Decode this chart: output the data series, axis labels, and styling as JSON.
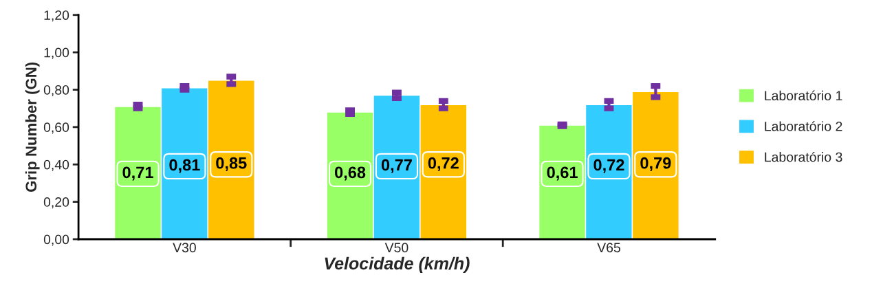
{
  "chart_data": {
    "type": "bar",
    "xlabel": "Velocidade (km/h)",
    "ylabel": "Grip Number (GN)",
    "categories": [
      "V30",
      "V50",
      "V65"
    ],
    "series": [
      {
        "name": "Laboratório 1",
        "color": "#99ff66",
        "values": [
          0.71,
          0.68,
          0.61
        ],
        "errors": [
          0.01,
          0.01,
          0.005
        ],
        "value_labels": [
          "0,71",
          "0,68",
          "0,61"
        ]
      },
      {
        "name": "Laboratório 2",
        "color": "#33ccff",
        "values": [
          0.81,
          0.77,
          0.72
        ],
        "errors": [
          0.01,
          0.015,
          0.02
        ],
        "value_labels": [
          "0,81",
          "0,77",
          "0,72"
        ]
      },
      {
        "name": "Laboratório 3",
        "color": "#ffc000",
        "values": [
          0.85,
          0.72,
          0.79
        ],
        "errors": [
          0.02,
          0.02,
          0.03
        ],
        "value_labels": [
          "0,85",
          "0,72",
          "0,79"
        ]
      }
    ],
    "ylim": [
      0,
      1.2
    ],
    "yticks": [
      {
        "value": 0,
        "label": "0,00"
      },
      {
        "value": 0.2,
        "label": "0,20"
      },
      {
        "value": 0.4,
        "label": "0,40"
      },
      {
        "value": 0.6,
        "label": "0,60"
      },
      {
        "value": 0.8,
        "label": "0,80"
      },
      {
        "value": 1.0,
        "label": "1,00"
      },
      {
        "value": 1.2,
        "label": "1,20"
      }
    ],
    "grid": false,
    "legend": "right"
  }
}
